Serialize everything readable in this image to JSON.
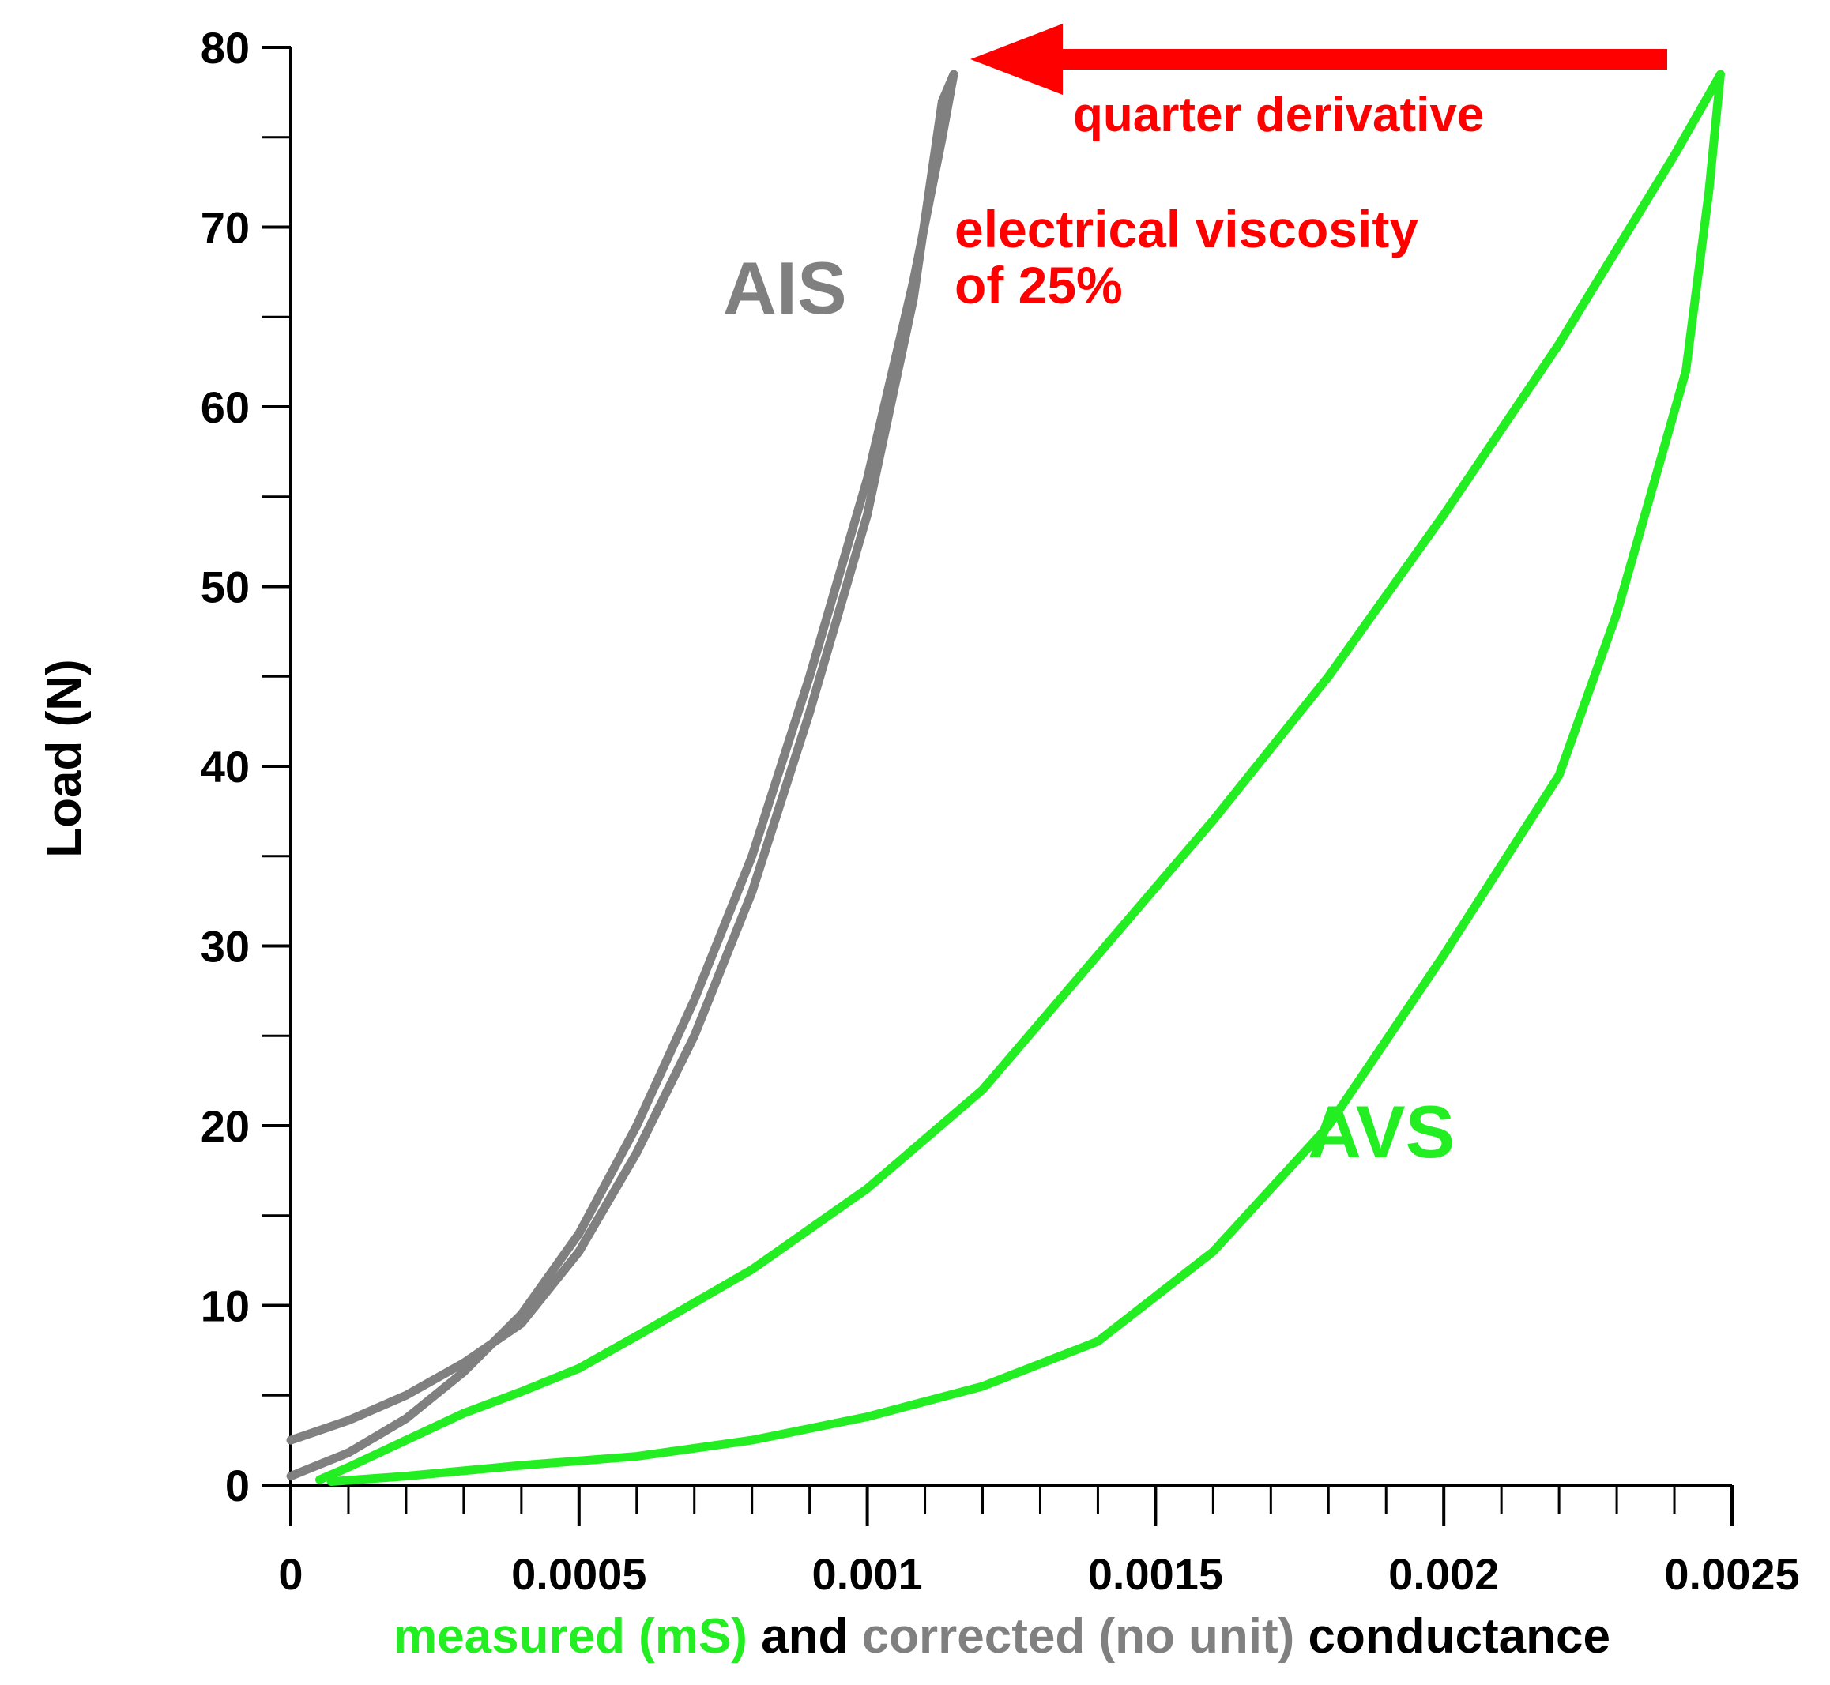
{
  "chart_data": {
    "type": "line",
    "xlabel_parts": [
      {
        "text": "measured (mS)",
        "color": "#22ee22"
      },
      {
        "text": " and ",
        "color": "#000000"
      },
      {
        "text": "corrected (no unit)",
        "color": "#808080"
      },
      {
        "text": " conductance",
        "color": "#000000"
      }
    ],
    "ylabel": "Load (N)",
    "xlim": [
      0,
      0.0025
    ],
    "ylim": [
      0,
      80
    ],
    "x_ticks": [
      "0",
      "0.0005",
      "0.001",
      "0.0015",
      "0.002",
      "0.0025"
    ],
    "y_ticks": [
      "0",
      "10",
      "20",
      "30",
      "40",
      "50",
      "60",
      "70",
      "80"
    ],
    "grid": false,
    "series": [
      {
        "name": "AIS",
        "color": "#808080",
        "loading": [
          [
            0.0,
            0.5
          ],
          [
            0.0001,
            1.8
          ],
          [
            0.0002,
            3.7
          ],
          [
            0.0003,
            6.3
          ],
          [
            0.0004,
            9.5
          ],
          [
            0.0005,
            14.0
          ],
          [
            0.0006,
            20.0
          ],
          [
            0.0007,
            27.0
          ],
          [
            0.0008,
            35.0
          ],
          [
            0.0009,
            45.0
          ],
          [
            0.001,
            56.0
          ],
          [
            0.00108,
            67.0
          ],
          [
            0.00113,
            75.0
          ],
          [
            0.00115,
            78.5
          ]
        ],
        "unloading": [
          [
            0.00115,
            78.5
          ],
          [
            0.00113,
            77.0
          ],
          [
            0.00108,
            66.0
          ],
          [
            0.001,
            54.0
          ],
          [
            0.0009,
            43.0
          ],
          [
            0.0008,
            33.0
          ],
          [
            0.0007,
            25.0
          ],
          [
            0.0006,
            18.5
          ],
          [
            0.0005,
            13.0
          ],
          [
            0.0004,
            9.0
          ],
          [
            0.0003,
            6.8
          ],
          [
            0.0002,
            5.0
          ],
          [
            0.0001,
            3.6
          ],
          [
            0.0,
            2.5
          ]
        ]
      },
      {
        "name": "AVS",
        "color": "#22ee22",
        "loading": [
          [
            5e-05,
            0.3
          ],
          [
            0.0001,
            1.0
          ],
          [
            0.0002,
            2.5
          ],
          [
            0.0003,
            4.0
          ],
          [
            0.0004,
            5.2
          ],
          [
            0.0005,
            6.5
          ],
          [
            0.0006,
            8.3
          ],
          [
            0.0008,
            12.0
          ],
          [
            0.001,
            16.5
          ],
          [
            0.0012,
            22.0
          ],
          [
            0.0014,
            29.5
          ],
          [
            0.0016,
            37.0
          ],
          [
            0.0018,
            45.0
          ],
          [
            0.002,
            54.0
          ],
          [
            0.0022,
            63.5
          ],
          [
            0.0024,
            74.0
          ],
          [
            0.00248,
            78.5
          ]
        ],
        "unloading": [
          [
            0.00248,
            78.5
          ],
          [
            0.00246,
            72.0
          ],
          [
            0.00242,
            62.0
          ],
          [
            0.0023,
            48.5
          ],
          [
            0.0022,
            39.5
          ],
          [
            0.002,
            29.5
          ],
          [
            0.0018,
            20.0
          ],
          [
            0.0016,
            13.0
          ],
          [
            0.0014,
            8.0
          ],
          [
            0.0012,
            5.5
          ],
          [
            0.001,
            3.8
          ],
          [
            0.0008,
            2.5
          ],
          [
            0.0006,
            1.6
          ],
          [
            0.0004,
            1.1
          ],
          [
            0.0002,
            0.5
          ],
          [
            7e-05,
            0.2
          ]
        ]
      }
    ],
    "annotations": {
      "ais_label": "AIS",
      "avs_label": "AVS",
      "arrow_text": "quarter derivative",
      "viscosity_line1": "electrical viscosity",
      "viscosity_line2": "of 25%"
    },
    "colors": {
      "accent": "#ff0000",
      "ais": "#808080",
      "avs": "#22ee22",
      "axis": "#000000"
    }
  }
}
